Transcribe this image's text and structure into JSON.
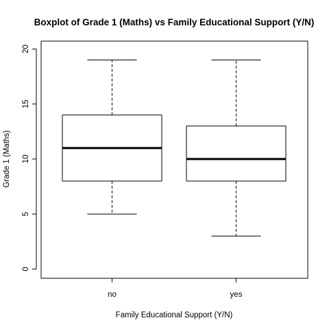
{
  "chart_data": {
    "type": "boxplot",
    "title": "Boxplot of Grade 1 (Maths)  vs  Family Educational Support (Y/N)",
    "xlabel": "Family Educational Support (Y/N)",
    "ylabel": "Grade 1 (Maths)",
    "ylim": [
      0,
      20
    ],
    "yticks": [
      0,
      5,
      10,
      15,
      20
    ],
    "categories": [
      "no",
      "yes"
    ],
    "boxes": [
      {
        "category": "no",
        "min": 5,
        "q1": 8,
        "median": 11,
        "q3": 14,
        "max": 19
      },
      {
        "category": "yes",
        "min": 3,
        "q1": 8,
        "median": 10,
        "q3": 13,
        "max": 19
      }
    ],
    "grid": false,
    "legend": "none"
  }
}
